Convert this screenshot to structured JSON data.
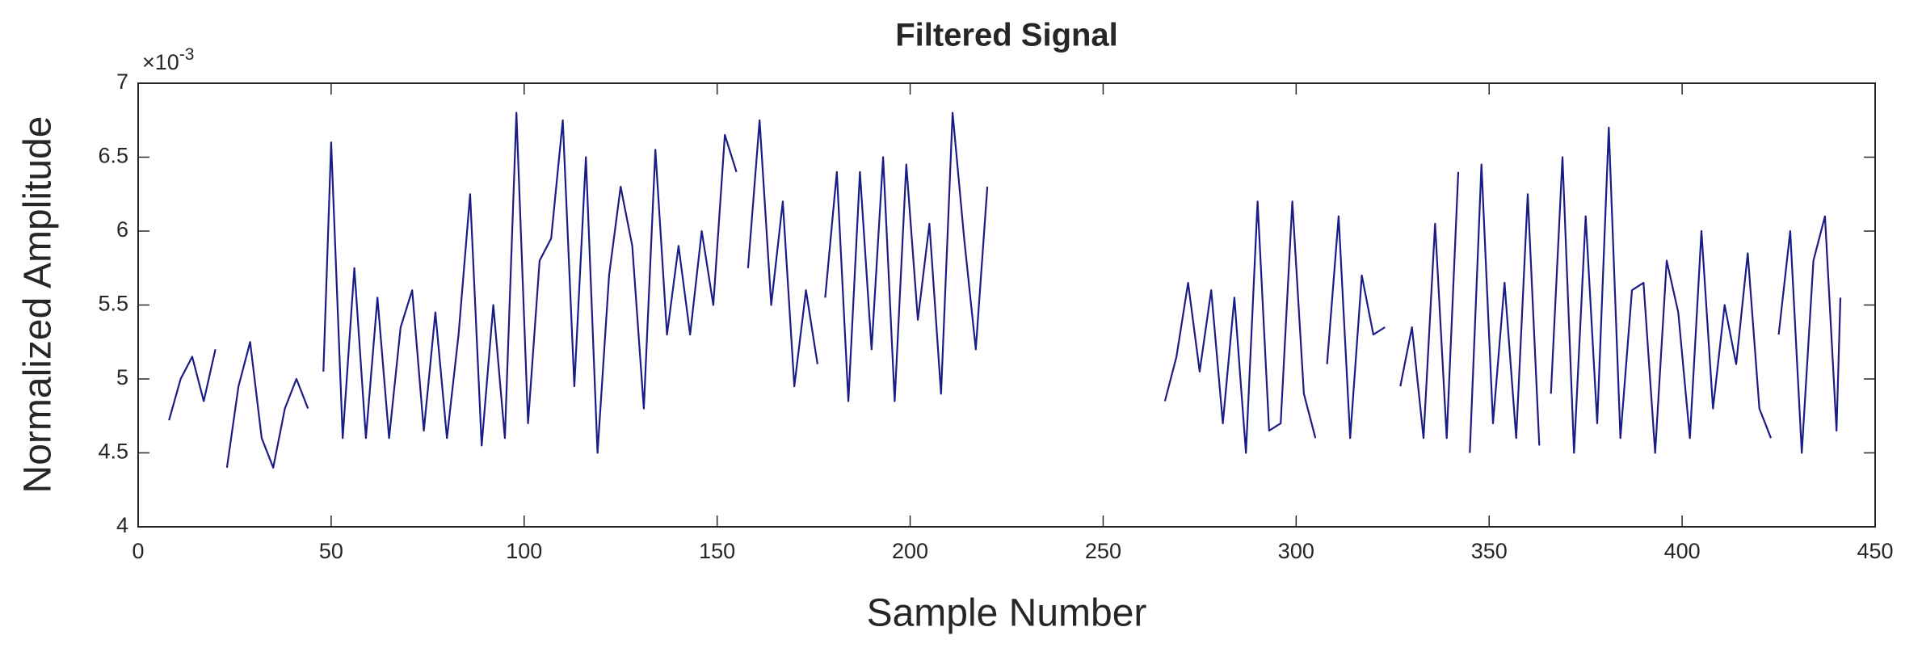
{
  "chart_data": {
    "type": "line",
    "title": "Filtered Signal",
    "x_label": "Sample Number",
    "y_label": "Normalized Amplitude",
    "y_multiplier": {
      "base": "×10",
      "exponent": "-3"
    },
    "xlim": [
      0,
      450
    ],
    "xticks": [
      0,
      50,
      100,
      150,
      200,
      250,
      300,
      350,
      400,
      450
    ],
    "ylim": [
      4,
      7
    ],
    "yticks": [
      4,
      4.5,
      5,
      5.5,
      6,
      6.5,
      7
    ],
    "grid": false,
    "x": [
      8,
      11,
      14,
      17,
      20,
      22,
      23,
      26,
      29,
      32,
      35,
      38,
      41,
      44,
      46,
      48,
      50,
      53,
      56,
      59,
      62,
      65,
      68,
      71,
      74,
      77,
      80,
      83,
      86,
      89,
      92,
      95,
      98,
      101,
      104,
      107,
      110,
      113,
      116,
      119,
      122,
      125,
      128,
      131,
      134,
      137,
      140,
      143,
      146,
      149,
      152,
      155,
      157,
      158,
      161,
      164,
      167,
      170,
      173,
      176,
      177,
      178,
      181,
      184,
      187,
      190,
      193,
      196,
      199,
      202,
      205,
      208,
      211,
      214,
      217,
      220,
      243,
      266,
      269,
      272,
      275,
      278,
      281,
      284,
      287,
      290,
      293,
      296,
      299,
      302,
      305,
      307,
      308,
      311,
      314,
      317,
      320,
      323,
      326,
      327,
      330,
      333,
      336,
      339,
      342,
      344,
      345,
      348,
      351,
      354,
      357,
      360,
      363,
      364,
      366,
      369,
      372,
      375,
      378,
      381,
      384,
      387,
      390,
      393,
      396,
      399,
      402,
      405,
      408,
      411,
      414,
      417,
      420,
      423,
      424,
      425,
      428,
      431,
      434,
      437,
      440,
      441
    ],
    "series": [
      {
        "name": "Filtered Signal",
        "color": "#1c1c86",
        "values": [
          4.72,
          5.0,
          5.15,
          4.85,
          5.2,
          null,
          4.4,
          4.95,
          5.25,
          4.6,
          4.4,
          4.8,
          5.0,
          4.8,
          null,
          5.05,
          6.6,
          4.6,
          5.75,
          4.6,
          5.55,
          4.6,
          5.35,
          5.6,
          4.65,
          5.45,
          4.6,
          5.3,
          6.25,
          4.55,
          5.5,
          4.6,
          6.8,
          4.7,
          5.8,
          5.95,
          6.75,
          4.95,
          6.5,
          4.5,
          5.7,
          6.3,
          5.9,
          4.8,
          6.55,
          5.3,
          5.9,
          5.3,
          6.0,
          5.5,
          6.65,
          6.4,
          null,
          5.75,
          6.75,
          5.5,
          6.2,
          4.95,
          5.6,
          5.1,
          null,
          5.55,
          6.4,
          4.85,
          6.4,
          5.2,
          6.5,
          4.85,
          6.45,
          5.4,
          6.05,
          4.9,
          6.8,
          5.95,
          5.2,
          6.3,
          null,
          4.85,
          5.15,
          5.65,
          5.05,
          5.6,
          4.7,
          5.55,
          4.5,
          6.2,
          4.65,
          4.7,
          6.2,
          4.9,
          4.6,
          null,
          5.1,
          6.1,
          4.6,
          5.7,
          5.3,
          5.35,
          null,
          4.95,
          5.35,
          4.6,
          6.05,
          4.6,
          6.4,
          null,
          4.5,
          6.45,
          4.7,
          5.65,
          4.6,
          6.25,
          4.55,
          null,
          4.9,
          6.5,
          4.5,
          6.1,
          4.7,
          6.7,
          4.6,
          5.6,
          5.65,
          4.5,
          5.8,
          5.45,
          4.6,
          6.0,
          4.8,
          5.5,
          5.1,
          5.85,
          4.8,
          4.6,
          null,
          5.3,
          6.0,
          4.5,
          5.8,
          6.1,
          4.65,
          5.55
        ]
      }
    ]
  }
}
